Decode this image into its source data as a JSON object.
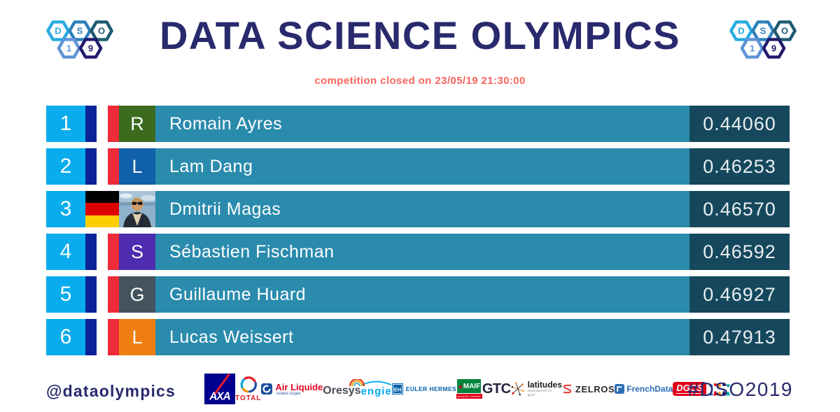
{
  "header": {
    "title": "DATA SCIENCE OLYMPICS",
    "subtitle": "competition closed on 23/05/19 21:30:00",
    "logo_hexagons": [
      {
        "label": "D",
        "color": "#29abe2"
      },
      {
        "label": "S",
        "color": "#2d80ba"
      },
      {
        "label": "O",
        "color": "#1d5a70"
      },
      {
        "label": "1",
        "color": "#5f93d8"
      },
      {
        "label": "9",
        "color": "#211a6d"
      }
    ]
  },
  "leaderboard": {
    "rows": [
      {
        "rank": "1",
        "name": "Romain Ayres",
        "score": "0.44060",
        "country": "FR",
        "avatar": "letter",
        "avatar_letter": "R",
        "avatar_color": "#3c6b1e"
      },
      {
        "rank": "2",
        "name": "Lam Dang",
        "score": "0.46253",
        "country": "FR",
        "avatar": "letter",
        "avatar_letter": "L",
        "avatar_color": "#1061a9"
      },
      {
        "rank": "3",
        "name": "Dmitrii Magas",
        "score": "0.46570",
        "country": "DE",
        "avatar": "photo"
      },
      {
        "rank": "4",
        "name": "Sébastien Fischman",
        "score": "0.46592",
        "country": "FR",
        "avatar": "letter",
        "avatar_letter": "S",
        "avatar_color": "#4f2bb0"
      },
      {
        "rank": "5",
        "name": "Guillaume Huard",
        "score": "0.46927",
        "country": "FR",
        "avatar": "letter",
        "avatar_letter": "G",
        "avatar_color": "#44545f"
      },
      {
        "rank": "6",
        "name": "Lucas Weissert",
        "score": "0.47913",
        "country": "FR",
        "avatar": "letter",
        "avatar_letter": "L",
        "avatar_color": "#f07f13"
      }
    ]
  },
  "footer": {
    "handle": "@dataolympics",
    "hashtag": "#DSO2019",
    "sponsors": [
      {
        "id": "axa",
        "label": "AXA"
      },
      {
        "id": "total",
        "label": "TOTAL"
      },
      {
        "id": "air-liquide",
        "label": "Air Liquide",
        "tagline": "creative oxygen"
      },
      {
        "id": "oresys",
        "label": "Oresys"
      },
      {
        "id": "engie",
        "label": "engie"
      },
      {
        "id": "euler-hermes",
        "abbr": "EH",
        "label": "EULER HERMES"
      },
      {
        "id": "maif",
        "label": "MAIF",
        "tagline": "assureur militant"
      },
      {
        "id": "gtc",
        "label": "GTC"
      },
      {
        "id": "latitudes",
        "label": "latitudes",
        "tagline": "exploring tech for good"
      },
      {
        "id": "zelros",
        "label": "ZELROS"
      },
      {
        "id": "frenchdata",
        "label": "FrenchData"
      },
      {
        "id": "dgcs",
        "label": "DGCS"
      }
    ]
  },
  "colors": {
    "title_navy": "#292a6d",
    "subtitle_coral": "#f8655e",
    "rank_blue": "#09acec",
    "name_bar_teal": "#2a8bad",
    "score_box_teal": "#15485d",
    "flag_fr": [
      "#0a2398",
      "#ffffff",
      "#ee2b39"
    ],
    "flag_de": [
      "#000000",
      "#dd0000",
      "#ffce00"
    ]
  }
}
